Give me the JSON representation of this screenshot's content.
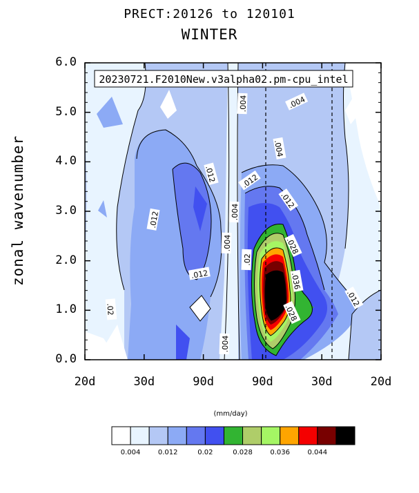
{
  "chart_data": {
    "type": "contour",
    "title": "PRECT:20126 to 120101",
    "subtitle": "WINTER",
    "annotation": "20230721.F2010New.v3alpha02.pm-cpu_intel",
    "ylabel": "zonal wavenumber",
    "units": "(mm/day)",
    "ylim": [
      0,
      6
    ],
    "yticks": [
      "0.0",
      "1.0",
      "2.0",
      "3.0",
      "4.0",
      "5.0",
      "6.0"
    ],
    "xticks": [
      "20d",
      "30d",
      "90d",
      "90d",
      "30d",
      "20d"
    ],
    "levels": [
      0.004,
      0.008,
      0.012,
      0.016,
      0.02,
      0.024,
      0.028,
      0.032,
      0.036,
      0.04,
      0.044,
      0.048
    ],
    "colorbar_labels": [
      "0.004",
      "0.012",
      "0.02",
      "0.028",
      "0.036",
      "0.044"
    ],
    "colors": [
      "#ffffff",
      "#e8f4ff",
      "#b4c8f5",
      "#8caaf5",
      "#6478f0",
      "#4150f0",
      "#32b432",
      "#afcd69",
      "#a5f564",
      "#ffa500",
      "#f50000",
      "#780000",
      "#000000"
    ],
    "contour_labels": [
      ".004",
      ".004",
      ".004",
      ".012",
      ".012",
      ".012",
      ".012",
      ".012",
      ".004",
      ".004",
      ".004",
      ".02",
      ".02",
      ".028",
      ".036",
      ".028",
      ".012"
    ]
  }
}
